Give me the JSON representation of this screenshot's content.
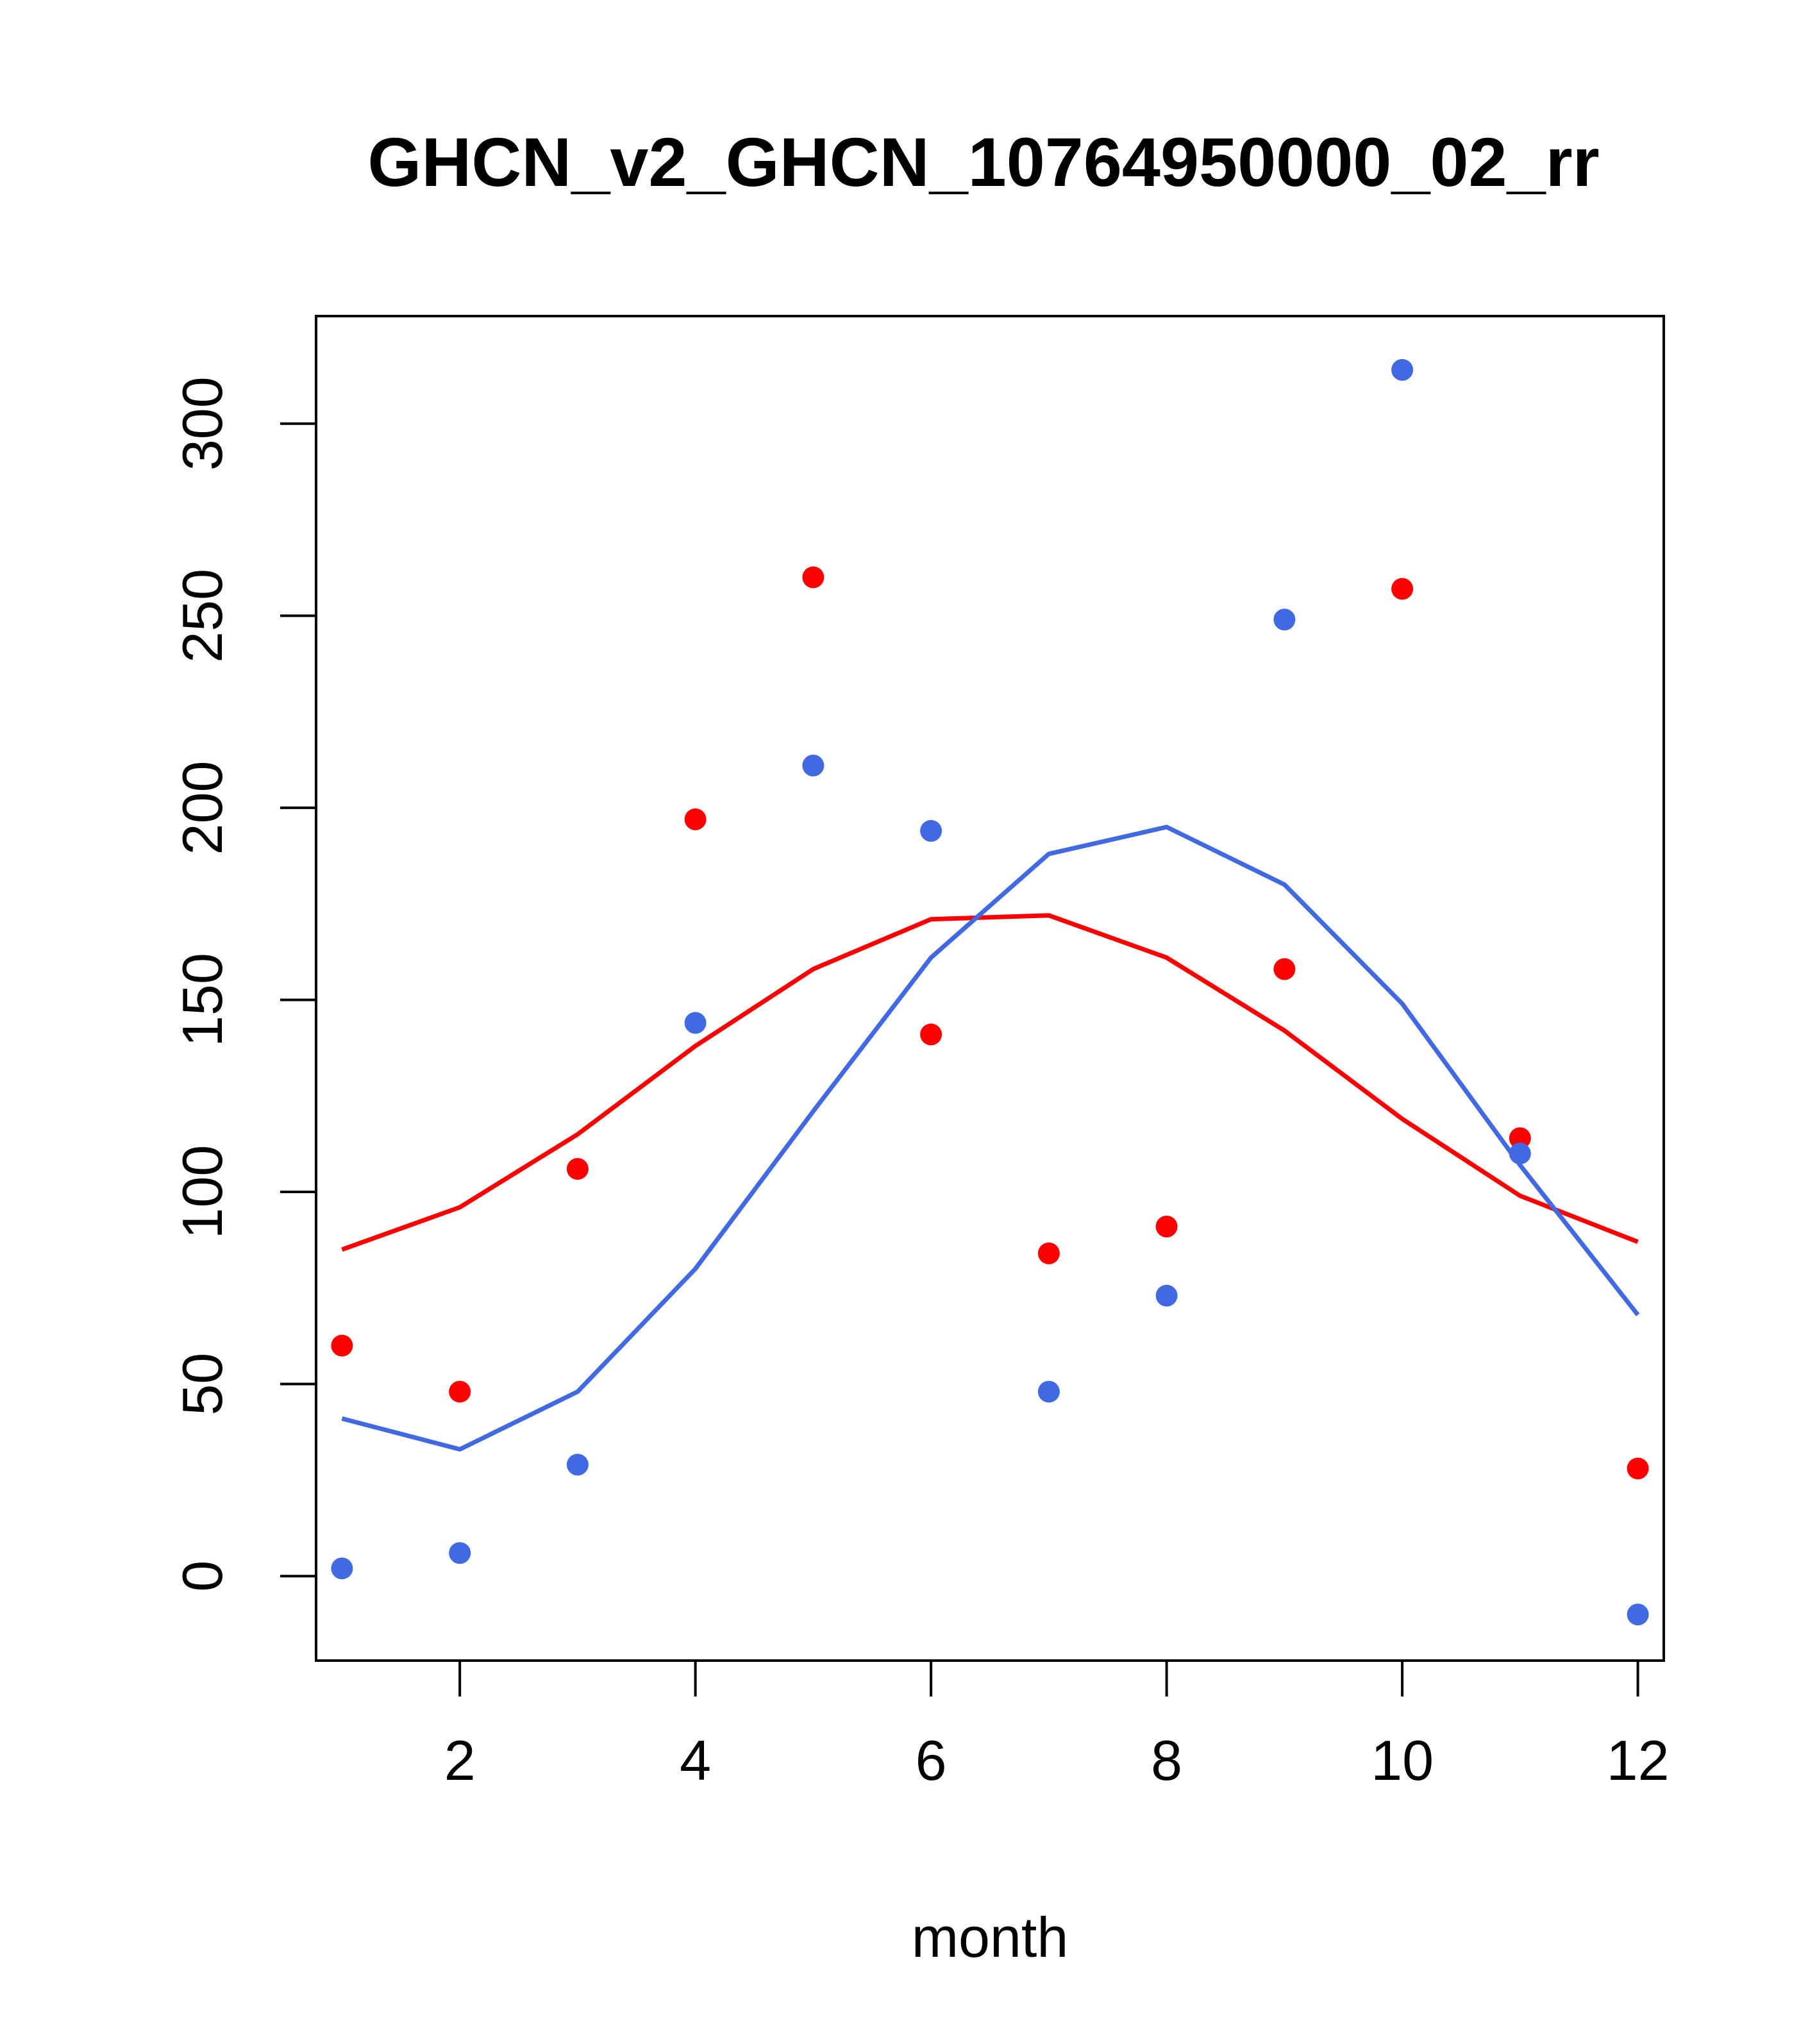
{
  "chart_data": {
    "type": "scatter",
    "title": "GHCN_v2_GHCN_10764950000_02_rr",
    "xlabel": "month",
    "ylabel": "",
    "xlim": [
      0.78,
      12.22
    ],
    "ylim": [
      -22,
      328
    ],
    "x_ticks": [
      2,
      4,
      6,
      8,
      10,
      12
    ],
    "x_tick_labels": [
      "2",
      "4",
      "6",
      "8",
      "10",
      "12"
    ],
    "y_ticks": [
      0,
      50,
      100,
      150,
      200,
      250,
      300
    ],
    "y_tick_labels": [
      "0",
      "50",
      "100",
      "150",
      "200",
      "250",
      "300"
    ],
    "x": [
      1,
      2,
      3,
      4,
      5,
      6,
      7,
      8,
      9,
      10,
      11,
      12
    ],
    "series": [
      {
        "name": "red points",
        "kind": "points",
        "color": "#ff0000",
        "values": [
          60,
          48,
          106,
          197,
          260,
          141,
          84,
          91,
          158,
          257,
          114,
          28
        ]
      },
      {
        "name": "blue points",
        "kind": "points",
        "color": "#4169e1",
        "values": [
          2,
          6,
          29,
          144,
          211,
          194,
          48,
          73,
          249,
          314,
          110,
          -10
        ]
      },
      {
        "name": "red line",
        "kind": "line",
        "color": "#ff0000",
        "values": [
          85,
          96,
          115,
          138,
          158,
          171,
          172,
          161,
          142,
          119,
          99,
          87
        ]
      },
      {
        "name": "blue line",
        "kind": "line",
        "color": "#4169e1",
        "values": [
          41,
          33,
          48,
          80,
          121,
          161,
          188,
          195,
          180,
          149,
          107,
          68
        ]
      }
    ]
  }
}
